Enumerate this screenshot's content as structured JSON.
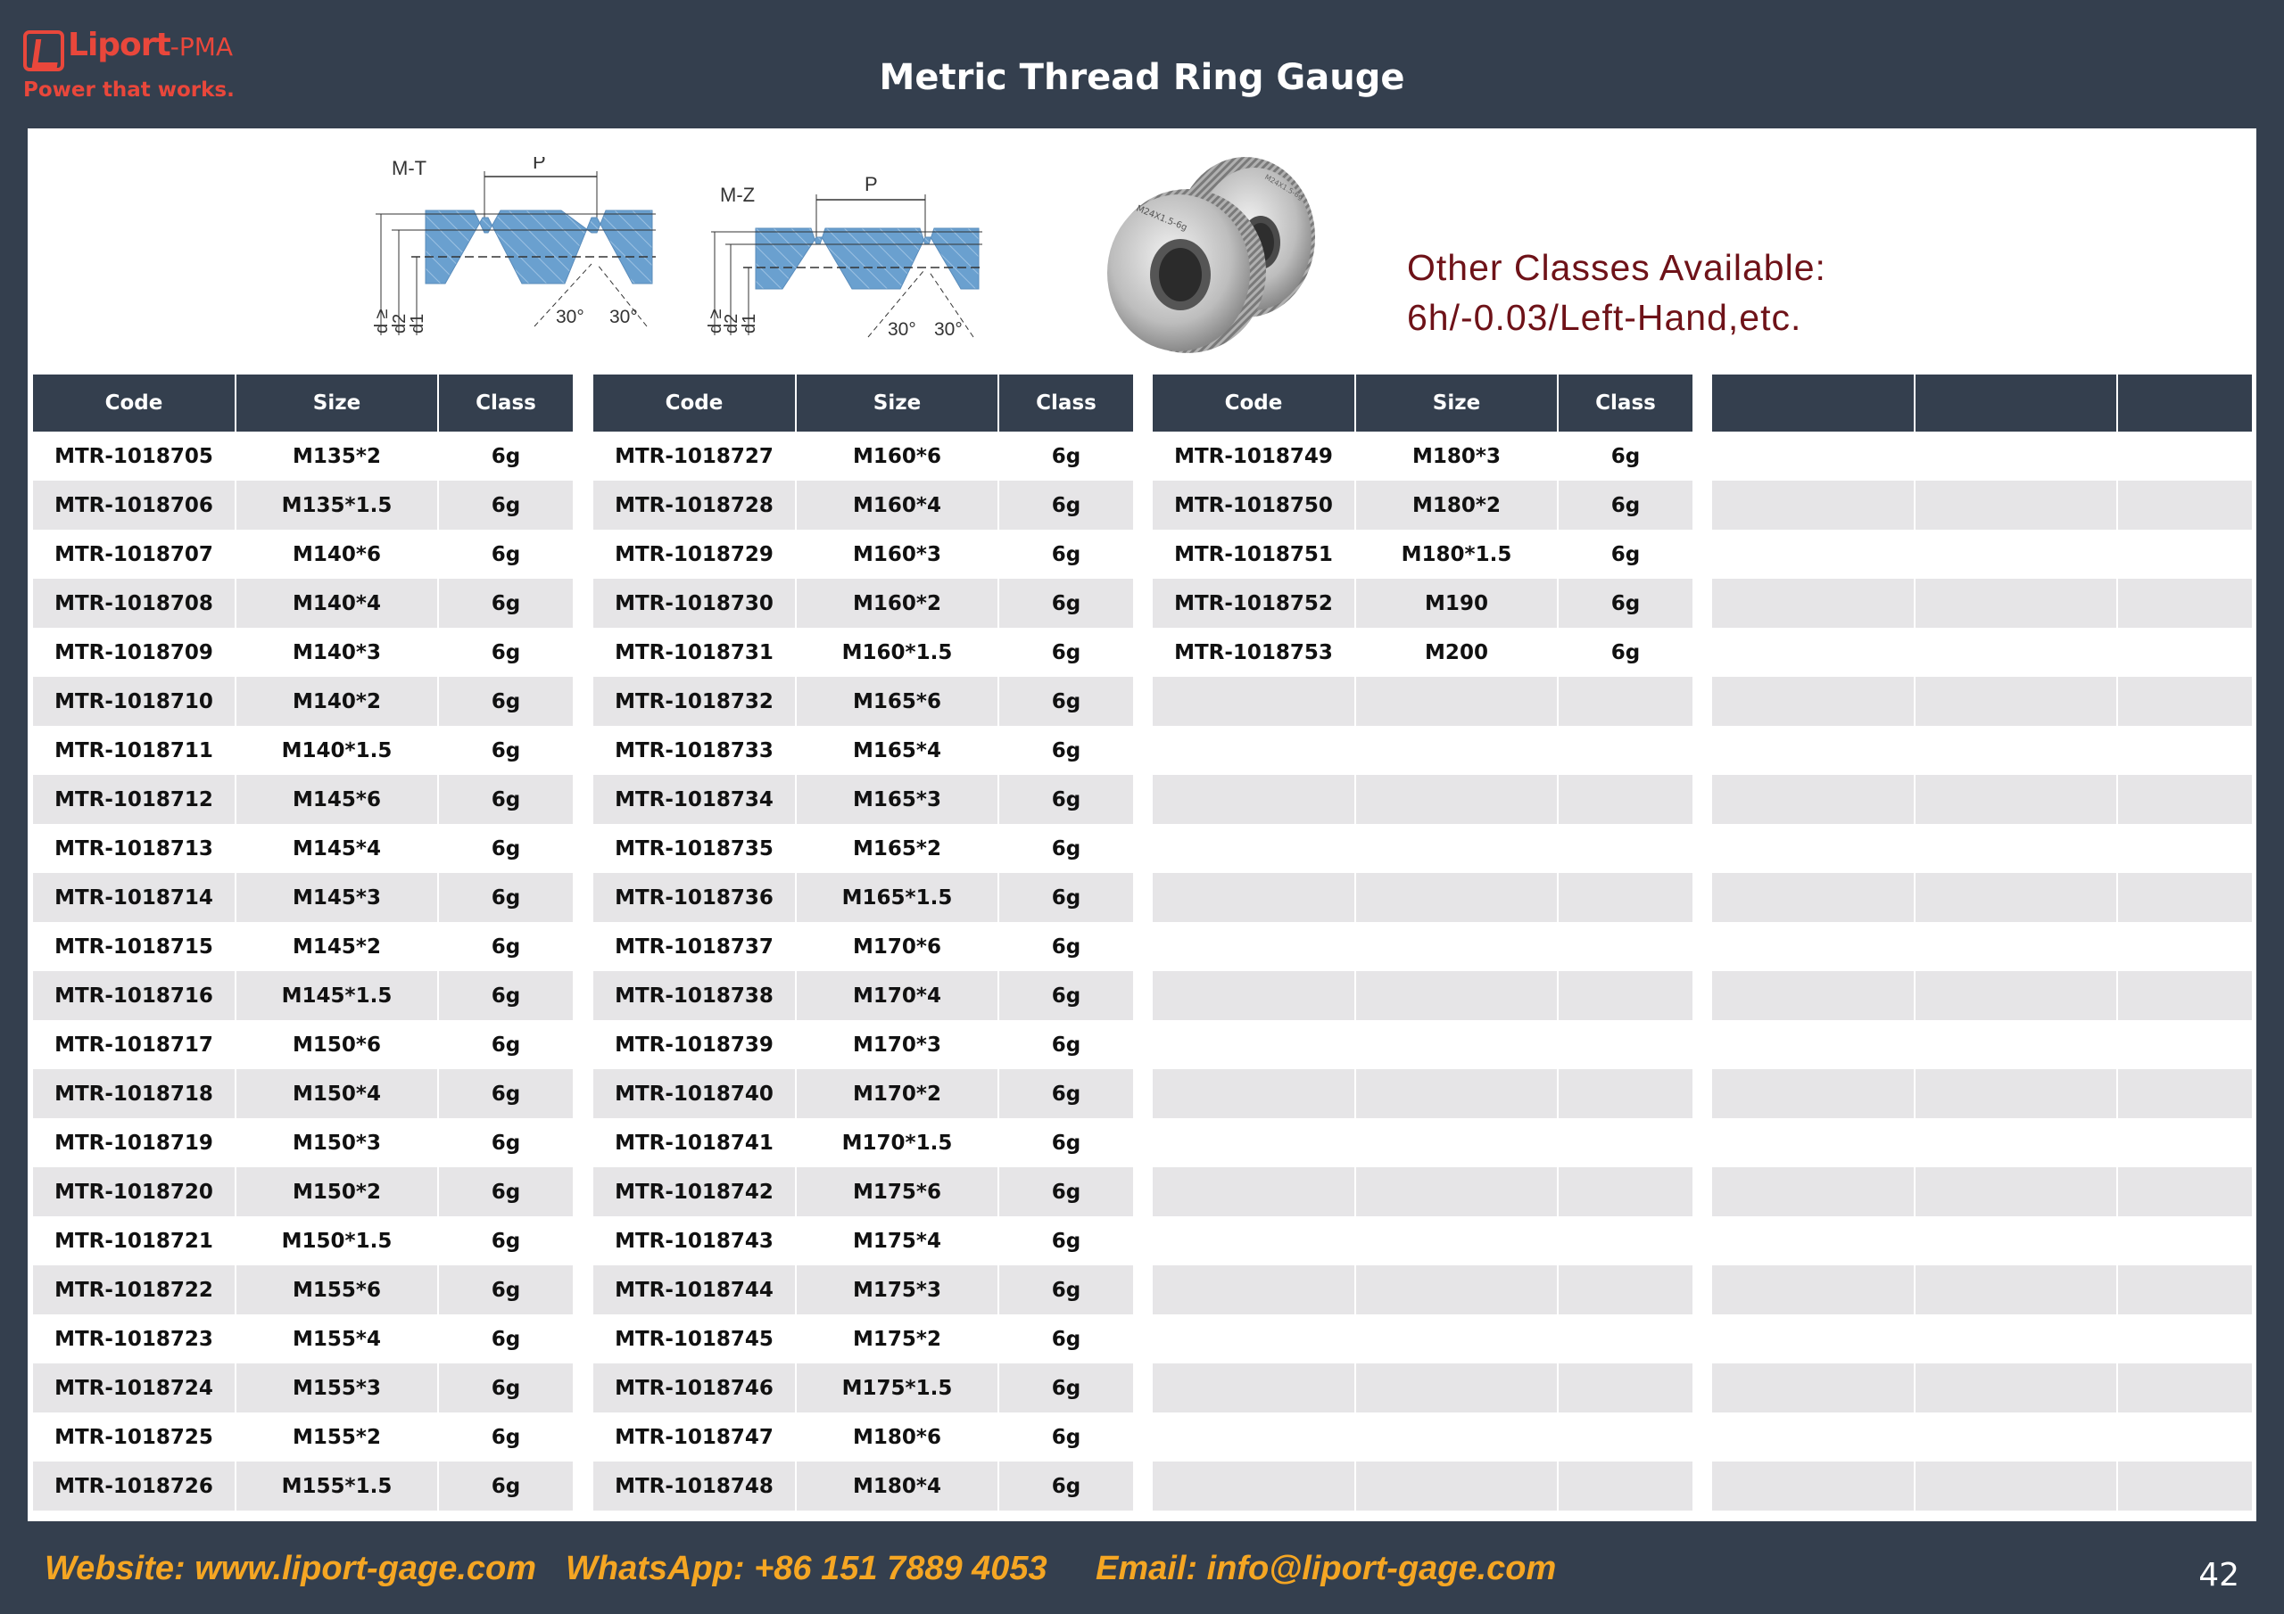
{
  "header": {
    "logo_name": "Liport",
    "logo_suffix": "-PMA",
    "logo_tagline": "Power that works.",
    "title": "Metric Thread Ring Gauge"
  },
  "diagrams": [
    {
      "label": "M-T",
      "pitch": "P",
      "angle_left": "30°",
      "angle_right": "30°",
      "dims": [
        "d ≥",
        "d2",
        "d1"
      ]
    },
    {
      "label": "M-Z",
      "pitch": "P",
      "angle_left": "30°",
      "angle_right": "30°",
      "dims": [
        "d ≥",
        "d2",
        "d1"
      ]
    }
  ],
  "photo": {
    "marking_left": "M24X1.5-6g",
    "marking_right": "M24X1.5-6g"
  },
  "note": {
    "line1": "Other Classes Available:",
    "line2": "6h/-0.03/Left-Hand,etc."
  },
  "table_headers": [
    "Code",
    "Size",
    "Class"
  ],
  "tables": [
    [
      [
        "MTR-1018705",
        "M135*2",
        "6g"
      ],
      [
        "MTR-1018706",
        "M135*1.5",
        "6g"
      ],
      [
        "MTR-1018707",
        "M140*6",
        "6g"
      ],
      [
        "MTR-1018708",
        "M140*4",
        "6g"
      ],
      [
        "MTR-1018709",
        "M140*3",
        "6g"
      ],
      [
        "MTR-1018710",
        "M140*2",
        "6g"
      ],
      [
        "MTR-1018711",
        "M140*1.5",
        "6g"
      ],
      [
        "MTR-1018712",
        "M145*6",
        "6g"
      ],
      [
        "MTR-1018713",
        "M145*4",
        "6g"
      ],
      [
        "MTR-1018714",
        "M145*3",
        "6g"
      ],
      [
        "MTR-1018715",
        "M145*2",
        "6g"
      ],
      [
        "MTR-1018716",
        "M145*1.5",
        "6g"
      ],
      [
        "MTR-1018717",
        "M150*6",
        "6g"
      ],
      [
        "MTR-1018718",
        "M150*4",
        "6g"
      ],
      [
        "MTR-1018719",
        "M150*3",
        "6g"
      ],
      [
        "MTR-1018720",
        "M150*2",
        "6g"
      ],
      [
        "MTR-1018721",
        "M150*1.5",
        "6g"
      ],
      [
        "MTR-1018722",
        "M155*6",
        "6g"
      ],
      [
        "MTR-1018723",
        "M155*4",
        "6g"
      ],
      [
        "MTR-1018724",
        "M155*3",
        "6g"
      ],
      [
        "MTR-1018725",
        "M155*2",
        "6g"
      ],
      [
        "MTR-1018726",
        "M155*1.5",
        "6g"
      ]
    ],
    [
      [
        "MTR-1018727",
        "M160*6",
        "6g"
      ],
      [
        "MTR-1018728",
        "M160*4",
        "6g"
      ],
      [
        "MTR-1018729",
        "M160*3",
        "6g"
      ],
      [
        "MTR-1018730",
        "M160*2",
        "6g"
      ],
      [
        "MTR-1018731",
        "M160*1.5",
        "6g"
      ],
      [
        "MTR-1018732",
        "M165*6",
        "6g"
      ],
      [
        "MTR-1018733",
        "M165*4",
        "6g"
      ],
      [
        "MTR-1018734",
        "M165*3",
        "6g"
      ],
      [
        "MTR-1018735",
        "M165*2",
        "6g"
      ],
      [
        "MTR-1018736",
        "M165*1.5",
        "6g"
      ],
      [
        "MTR-1018737",
        "M170*6",
        "6g"
      ],
      [
        "MTR-1018738",
        "M170*4",
        "6g"
      ],
      [
        "MTR-1018739",
        "M170*3",
        "6g"
      ],
      [
        "MTR-1018740",
        "M170*2",
        "6g"
      ],
      [
        "MTR-1018741",
        "M170*1.5",
        "6g"
      ],
      [
        "MTR-1018742",
        "M175*6",
        "6g"
      ],
      [
        "MTR-1018743",
        "M175*4",
        "6g"
      ],
      [
        "MTR-1018744",
        "M175*3",
        "6g"
      ],
      [
        "MTR-1018745",
        "M175*2",
        "6g"
      ],
      [
        "MTR-1018746",
        "M175*1.5",
        "6g"
      ],
      [
        "MTR-1018747",
        "M180*6",
        "6g"
      ],
      [
        "MTR-1018748",
        "M180*4",
        "6g"
      ]
    ],
    [
      [
        "MTR-1018749",
        "M180*3",
        "6g"
      ],
      [
        "MTR-1018750",
        "M180*2",
        "6g"
      ],
      [
        "MTR-1018751",
        "M180*1.5",
        "6g"
      ],
      [
        "MTR-1018752",
        "M190",
        "6g"
      ],
      [
        "MTR-1018753",
        "M200",
        "6g"
      ]
    ],
    []
  ],
  "footer": {
    "website": "Website: www.liport-gage.com",
    "whatsapp": "WhatsApp: +86 151 7889 4053",
    "email": "Email: info@liport-gage.com",
    "page": "42"
  }
}
